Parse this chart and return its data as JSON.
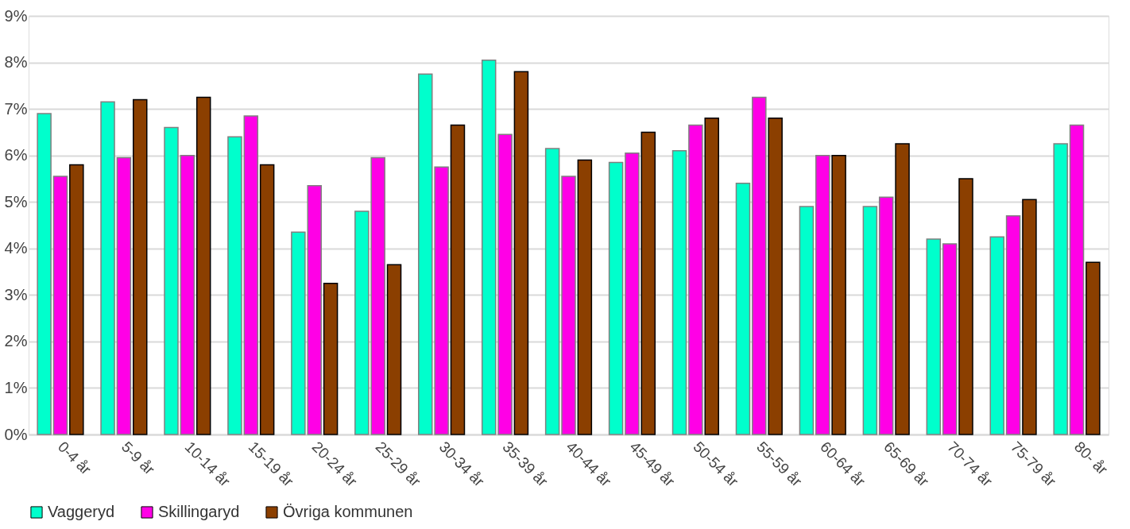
{
  "chart_data": {
    "type": "bar",
    "categories": [
      "0-4 år",
      "5-9 år",
      "10-14 år",
      "15-19 år",
      "20-24 år",
      "25-29 år",
      "30-34 år",
      "35-39 år",
      "40-44 år",
      "45-49 år",
      "50-54 år",
      "55-59 år",
      "60-64 år",
      "65-69 år",
      "70-74 år",
      "75-79 år",
      "80- år"
    ],
    "series": [
      {
        "name": "Vaggeryd",
        "color": "#00ffcc",
        "values": [
          6.9,
          7.15,
          6.6,
          6.4,
          4.35,
          4.8,
          7.75,
          8.05,
          6.15,
          5.85,
          6.1,
          5.4,
          4.9,
          4.9,
          4.2,
          4.25,
          6.25
        ]
      },
      {
        "name": "Skillingaryd",
        "color": "#ff00e6",
        "values": [
          5.55,
          5.95,
          6.0,
          6.85,
          5.35,
          5.95,
          5.75,
          6.45,
          5.55,
          6.05,
          6.65,
          7.25,
          6.0,
          5.1,
          4.1,
          4.7,
          6.65
        ]
      },
      {
        "name": "Övriga kommunen",
        "color": "#8b3f00",
        "values": [
          5.8,
          7.2,
          7.25,
          5.8,
          3.25,
          3.65,
          6.65,
          7.8,
          5.9,
          6.5,
          6.8,
          6.8,
          6.0,
          6.25,
          5.5,
          5.05,
          3.7
        ]
      }
    ],
    "ylim": [
      0,
      9
    ],
    "yticks": [
      {
        "value": 0,
        "label": "0%"
      },
      {
        "value": 1,
        "label": "1%"
      },
      {
        "value": 2,
        "label": "2%"
      },
      {
        "value": 3,
        "label": "3%"
      },
      {
        "value": 4,
        "label": "4%"
      },
      {
        "value": 5,
        "label": "5%"
      },
      {
        "value": 6,
        "label": "6%"
      },
      {
        "value": 7,
        "label": "7%"
      },
      {
        "value": 8,
        "label": "8%"
      },
      {
        "value": 9,
        "label": "9%"
      }
    ],
    "grid": "y",
    "legend": "bottom"
  }
}
